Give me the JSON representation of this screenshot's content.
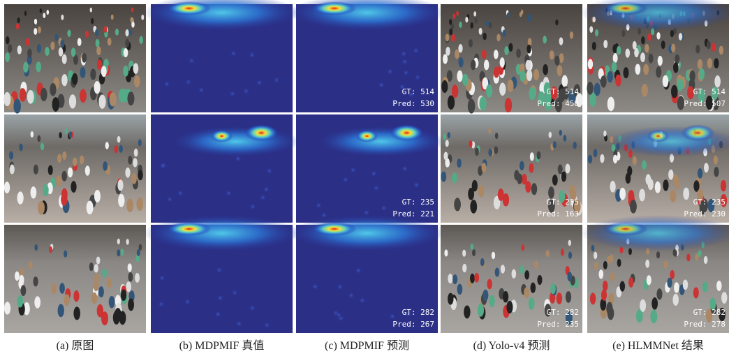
{
  "captions": [
    "(a)  原图",
    "(b)  MDPMIF 真值",
    "(c)  MDPMIF 预测",
    "(d)  Yolo-v4 预测",
    "(e)  HLMMNet 结果"
  ],
  "panels": [
    [
      {
        "gt": "GT: 514",
        "pred": "Pred: 530"
      },
      {
        "gt": "GT: 235",
        "pred": "Pred: 221"
      },
      {
        "gt": "GT: 282",
        "pred": "Pred: 267"
      }
    ],
    [
      {
        "gt": "GT: 514",
        "pred": "Pred: 458"
      },
      {
        "gt": "GT: 235",
        "pred": "Pred: 163"
      },
      {
        "gt": "GT: 282",
        "pred": "Pred: 235"
      }
    ],
    [
      {
        "gt": "GT: 514",
        "pred": "Pred: 507"
      },
      {
        "gt": "GT: 235",
        "pred": "Pred: 230"
      },
      {
        "gt": "GT: 282",
        "pred": "Pred: 278"
      }
    ]
  ]
}
